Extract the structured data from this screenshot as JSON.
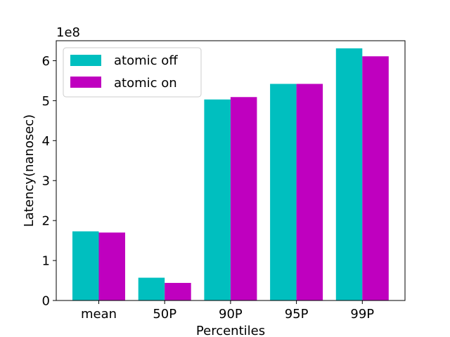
{
  "chart_data": {
    "type": "bar",
    "categories": [
      "mean",
      "50P",
      "90P",
      "95P",
      "99P"
    ],
    "series": [
      {
        "name": "atomic off",
        "color": "#00bfbf",
        "values": [
          1.73,
          0.57,
          5.03,
          5.42,
          6.31
        ]
      },
      {
        "name": "atomic on",
        "color": "#bf00bf",
        "values": [
          1.7,
          0.44,
          5.09,
          5.42,
          6.11
        ]
      }
    ],
    "xlabel": "Percentiles",
    "ylabel": "Latency(nanosec)",
    "y_offset_label": "1e8",
    "ylim": [
      0,
      6.5
    ],
    "yticks": [
      0,
      1,
      2,
      3,
      4,
      5,
      6
    ],
    "grid": false,
    "legend_position": "top-left"
  }
}
